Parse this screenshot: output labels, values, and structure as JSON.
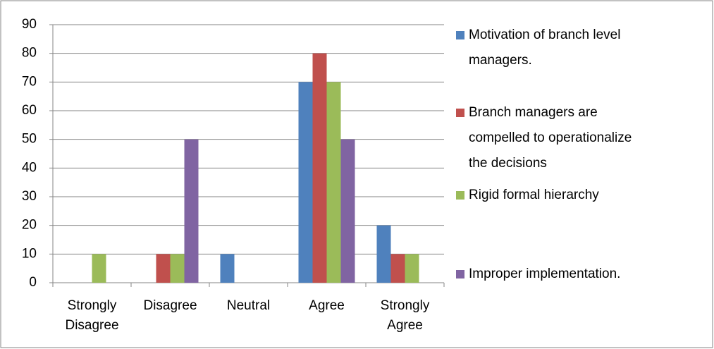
{
  "chart_data": {
    "type": "bar",
    "categories": [
      "Strongly Disagree",
      "Disagree",
      "Neutral",
      "Agree",
      "Strongly Agree"
    ],
    "series": [
      {
        "name": "Motivation of branch level managers.",
        "color": "#4f81bd",
        "values": [
          0,
          0,
          10,
          70,
          20
        ]
      },
      {
        "name": "Branch managers are compelled to operationalize the decisions",
        "color": "#c0504d",
        "values": [
          0,
          10,
          0,
          80,
          10
        ]
      },
      {
        "name": "Rigid formal hierarchy",
        "color": "#9bbb59",
        "values": [
          10,
          10,
          0,
          70,
          10
        ]
      },
      {
        "name": "Improper implementation.",
        "color": "#8064a2",
        "values": [
          0,
          50,
          0,
          50,
          0
        ]
      }
    ],
    "ylim": [
      0,
      90
    ],
    "yticks": [
      0,
      10,
      20,
      30,
      40,
      50,
      60,
      70,
      80,
      90
    ],
    "grid": true,
    "legend": "right"
  }
}
